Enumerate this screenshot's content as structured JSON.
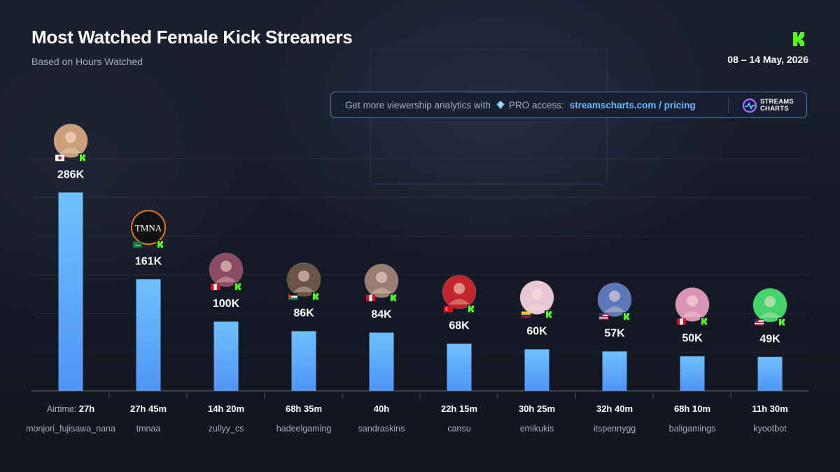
{
  "header": {
    "title": "Most Watched Female Kick Streamers",
    "subtitle": "Based on Hours Watched",
    "date_range": "08 – 14 May, 2026",
    "brand_icon": "kick-logo-icon"
  },
  "promo": {
    "text": "Get more viewership analytics with",
    "gem_icon": "diamond-icon",
    "access": "PRO access:",
    "link": "streamscharts.com / pricing",
    "logo_line1": "STREAMS",
    "logo_line2": "CHARTS"
  },
  "colors": {
    "bar_top": "#6fc0ff",
    "bar_bottom": "#4f95f5",
    "kick_green": "#53fc18",
    "accent_link": "#6cb8ff"
  },
  "chart_data": {
    "type": "bar",
    "title": "Most Watched Female Kick Streamers",
    "subtitle": "Based on Hours Watched",
    "ylim": [
      0,
      330000
    ],
    "grid": true,
    "airtime_label": "Airtime:",
    "categories": [
      "monjori_fujisawa_nana",
      "tmnaa",
      "zullyy_cs",
      "hadeelgaming",
      "sandraskins",
      "cansu",
      "emikukis",
      "itspennygg",
      "baligamings",
      "kyootbot"
    ],
    "values": [
      286000,
      161000,
      100000,
      86000,
      84000,
      68000,
      60000,
      57000,
      50000,
      49000
    ],
    "value_labels": [
      "286K",
      "161K",
      "100K",
      "86K",
      "84K",
      "68K",
      "60K",
      "57K",
      "50K",
      "49K"
    ],
    "airtime": [
      "27h",
      "27h 45m",
      "14h 20m",
      "68h 35m",
      "40h",
      "22h 15m",
      "30h 25m",
      "32h 40m",
      "68h 10m",
      "11h 30m"
    ],
    "avatar_icons": [
      "avatar-icon",
      "tmna-logo-icon",
      "avatar-icon",
      "avatar-icon",
      "avatar-icon",
      "avatar-icon",
      "avatar-icon",
      "avatar-icon",
      "avatar-icon",
      "avatar-icon"
    ],
    "avatar_colors": [
      "#c9a07a",
      "#111111",
      "#8a4b63",
      "#6b5446",
      "#9a7d70",
      "#c0262c",
      "#e8c6d2",
      "#5d78b8",
      "#d894b4",
      "#43d46b"
    ],
    "flag_icons": [
      "japan-flag-icon",
      "saudi-arabia-flag-icon",
      "peru-flag-icon",
      "palestine-flag-icon",
      "peru-flag-icon",
      "turkey-flag-icon",
      "colombia-flag-icon",
      "usa-flag-icon",
      "peru-flag-icon",
      "usa-flag-icon"
    ]
  }
}
